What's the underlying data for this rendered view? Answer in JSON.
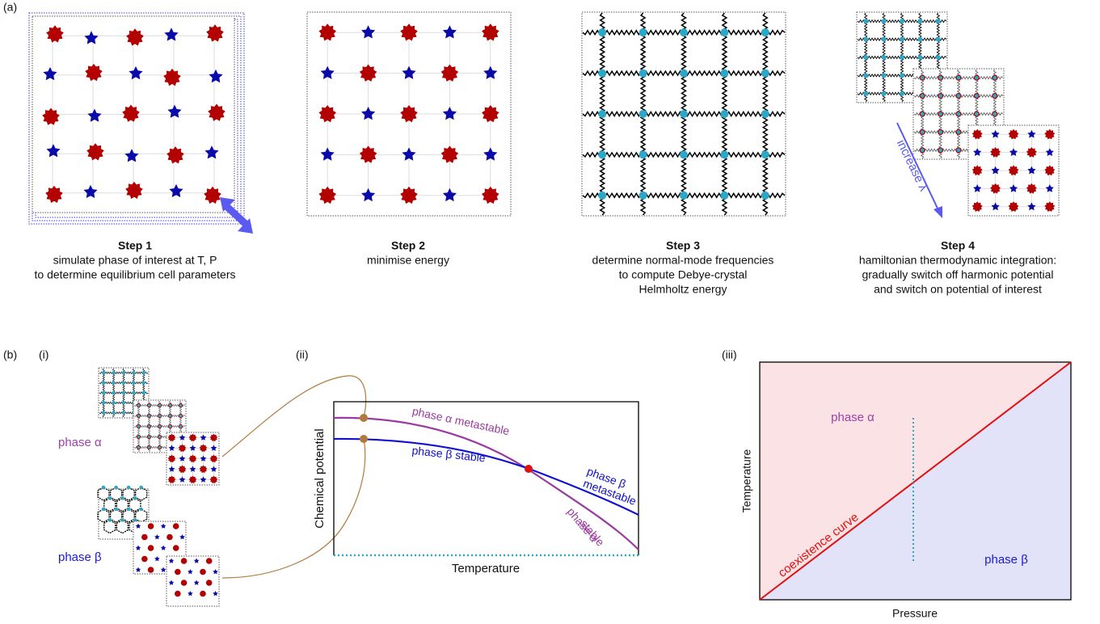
{
  "panel_a": {
    "label": "(a)",
    "steps": [
      {
        "title": "Step 1",
        "lines": [
          "simulate phase of interest at T, P",
          "to determine equilibrium cell parameters"
        ]
      },
      {
        "title": "Step 2",
        "lines": [
          "minimise energy"
        ]
      },
      {
        "title": "Step 3",
        "lines": [
          "determine normal-mode frequencies",
          "to compute Debye-crystal",
          "Helmholtz energy"
        ]
      },
      {
        "title": "Step 4",
        "lines": [
          "hamiltonian thermodynamic integration:",
          "gradually switch off harmonic potential",
          "and switch on potential of interest"
        ]
      }
    ],
    "arrow_label": "increase λ"
  },
  "panel_b": {
    "label": "(b)",
    "i": {
      "label": "(i)",
      "phase_alpha": "phase α",
      "phase_beta": "phase β"
    },
    "ii": {
      "label": "(ii)",
      "y_label": "Chemical potential",
      "x_label": "Temperature",
      "alpha_metastable": "phase α metastable",
      "beta_stable": "phase β stable",
      "beta_metastable": [
        "phase β",
        "metastable"
      ],
      "alpha_stable": [
        "phase α",
        "stable"
      ]
    },
    "iii": {
      "label": "(iii)",
      "y_label": "Temperature",
      "x_label": "Pressure",
      "phase_alpha": "phase α",
      "phase_beta": "phase β",
      "curve_label": "coexistence curve"
    }
  }
}
